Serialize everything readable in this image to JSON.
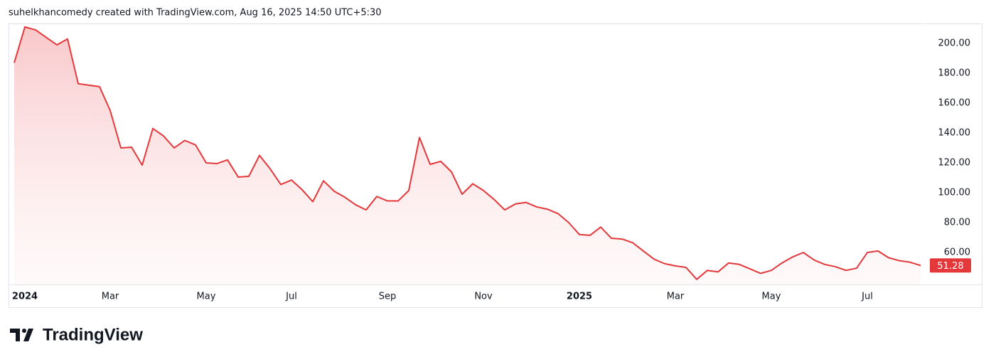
{
  "chart_data": {
    "type": "area",
    "title": "suhelkhancomedy created with TradingView.com, Aug 16, 2025 14:50 UTC+5:30",
    "brand": "TradingView",
    "color": "#e5383b",
    "categories": [
      null,
      "2024",
      null,
      null,
      null,
      null,
      null,
      null,
      null,
      "Mar",
      null,
      null,
      null,
      null,
      null,
      null,
      null,
      null,
      "May",
      null,
      null,
      null,
      null,
      null,
      null,
      null,
      "Jul",
      null,
      null,
      null,
      null,
      null,
      null,
      null,
      null,
      "Sep",
      null,
      null,
      null,
      null,
      null,
      null,
      null,
      null,
      "Nov",
      null,
      null,
      null,
      null,
      null,
      null,
      null,
      null,
      "2025",
      null,
      null,
      null,
      null,
      null,
      null,
      null,
      null,
      "Mar",
      null,
      null,
      null,
      null,
      null,
      null,
      null,
      null,
      "May",
      null,
      null,
      null,
      null,
      null,
      null,
      null,
      null,
      "Jul",
      null,
      null,
      null,
      null,
      null
    ],
    "values": [
      187,
      211,
      209,
      204,
      199,
      203,
      173,
      172,
      171,
      155,
      130,
      130.5,
      118.5,
      143,
      138,
      130,
      135,
      132,
      120,
      119.5,
      122,
      110.5,
      111,
      125,
      116,
      105.5,
      108.5,
      102,
      94,
      108,
      101,
      97,
      92,
      88.5,
      97.5,
      94.5,
      94.5,
      101.5,
      137,
      119,
      121,
      114,
      99,
      106,
      101.5,
      95.5,
      88.5,
      92.5,
      93.5,
      90.5,
      89,
      86,
      80,
      72,
      71.5,
      77,
      69.5,
      69,
      66.5,
      61,
      55.5,
      52.5,
      51,
      50,
      42,
      48,
      47,
      53,
      52,
      49,
      46,
      48,
      53,
      57,
      60,
      55,
      52,
      50.5,
      48,
      49.5,
      60,
      61,
      56.5,
      54.5,
      53.5,
      51.28
    ],
    "ylim": [
      38.57,
      213.33
    ],
    "yticks": [
      {
        "value": 60,
        "label": "60.00"
      },
      {
        "value": 80,
        "label": "80.00"
      },
      {
        "value": 100,
        "label": "100.00"
      },
      {
        "value": 120,
        "label": "120.00"
      },
      {
        "value": 140,
        "label": "140.00"
      },
      {
        "value": 160,
        "label": "160.00"
      },
      {
        "value": 180,
        "label": "180.00"
      },
      {
        "value": 200,
        "label": "200.00"
      }
    ],
    "grid": false
  }
}
